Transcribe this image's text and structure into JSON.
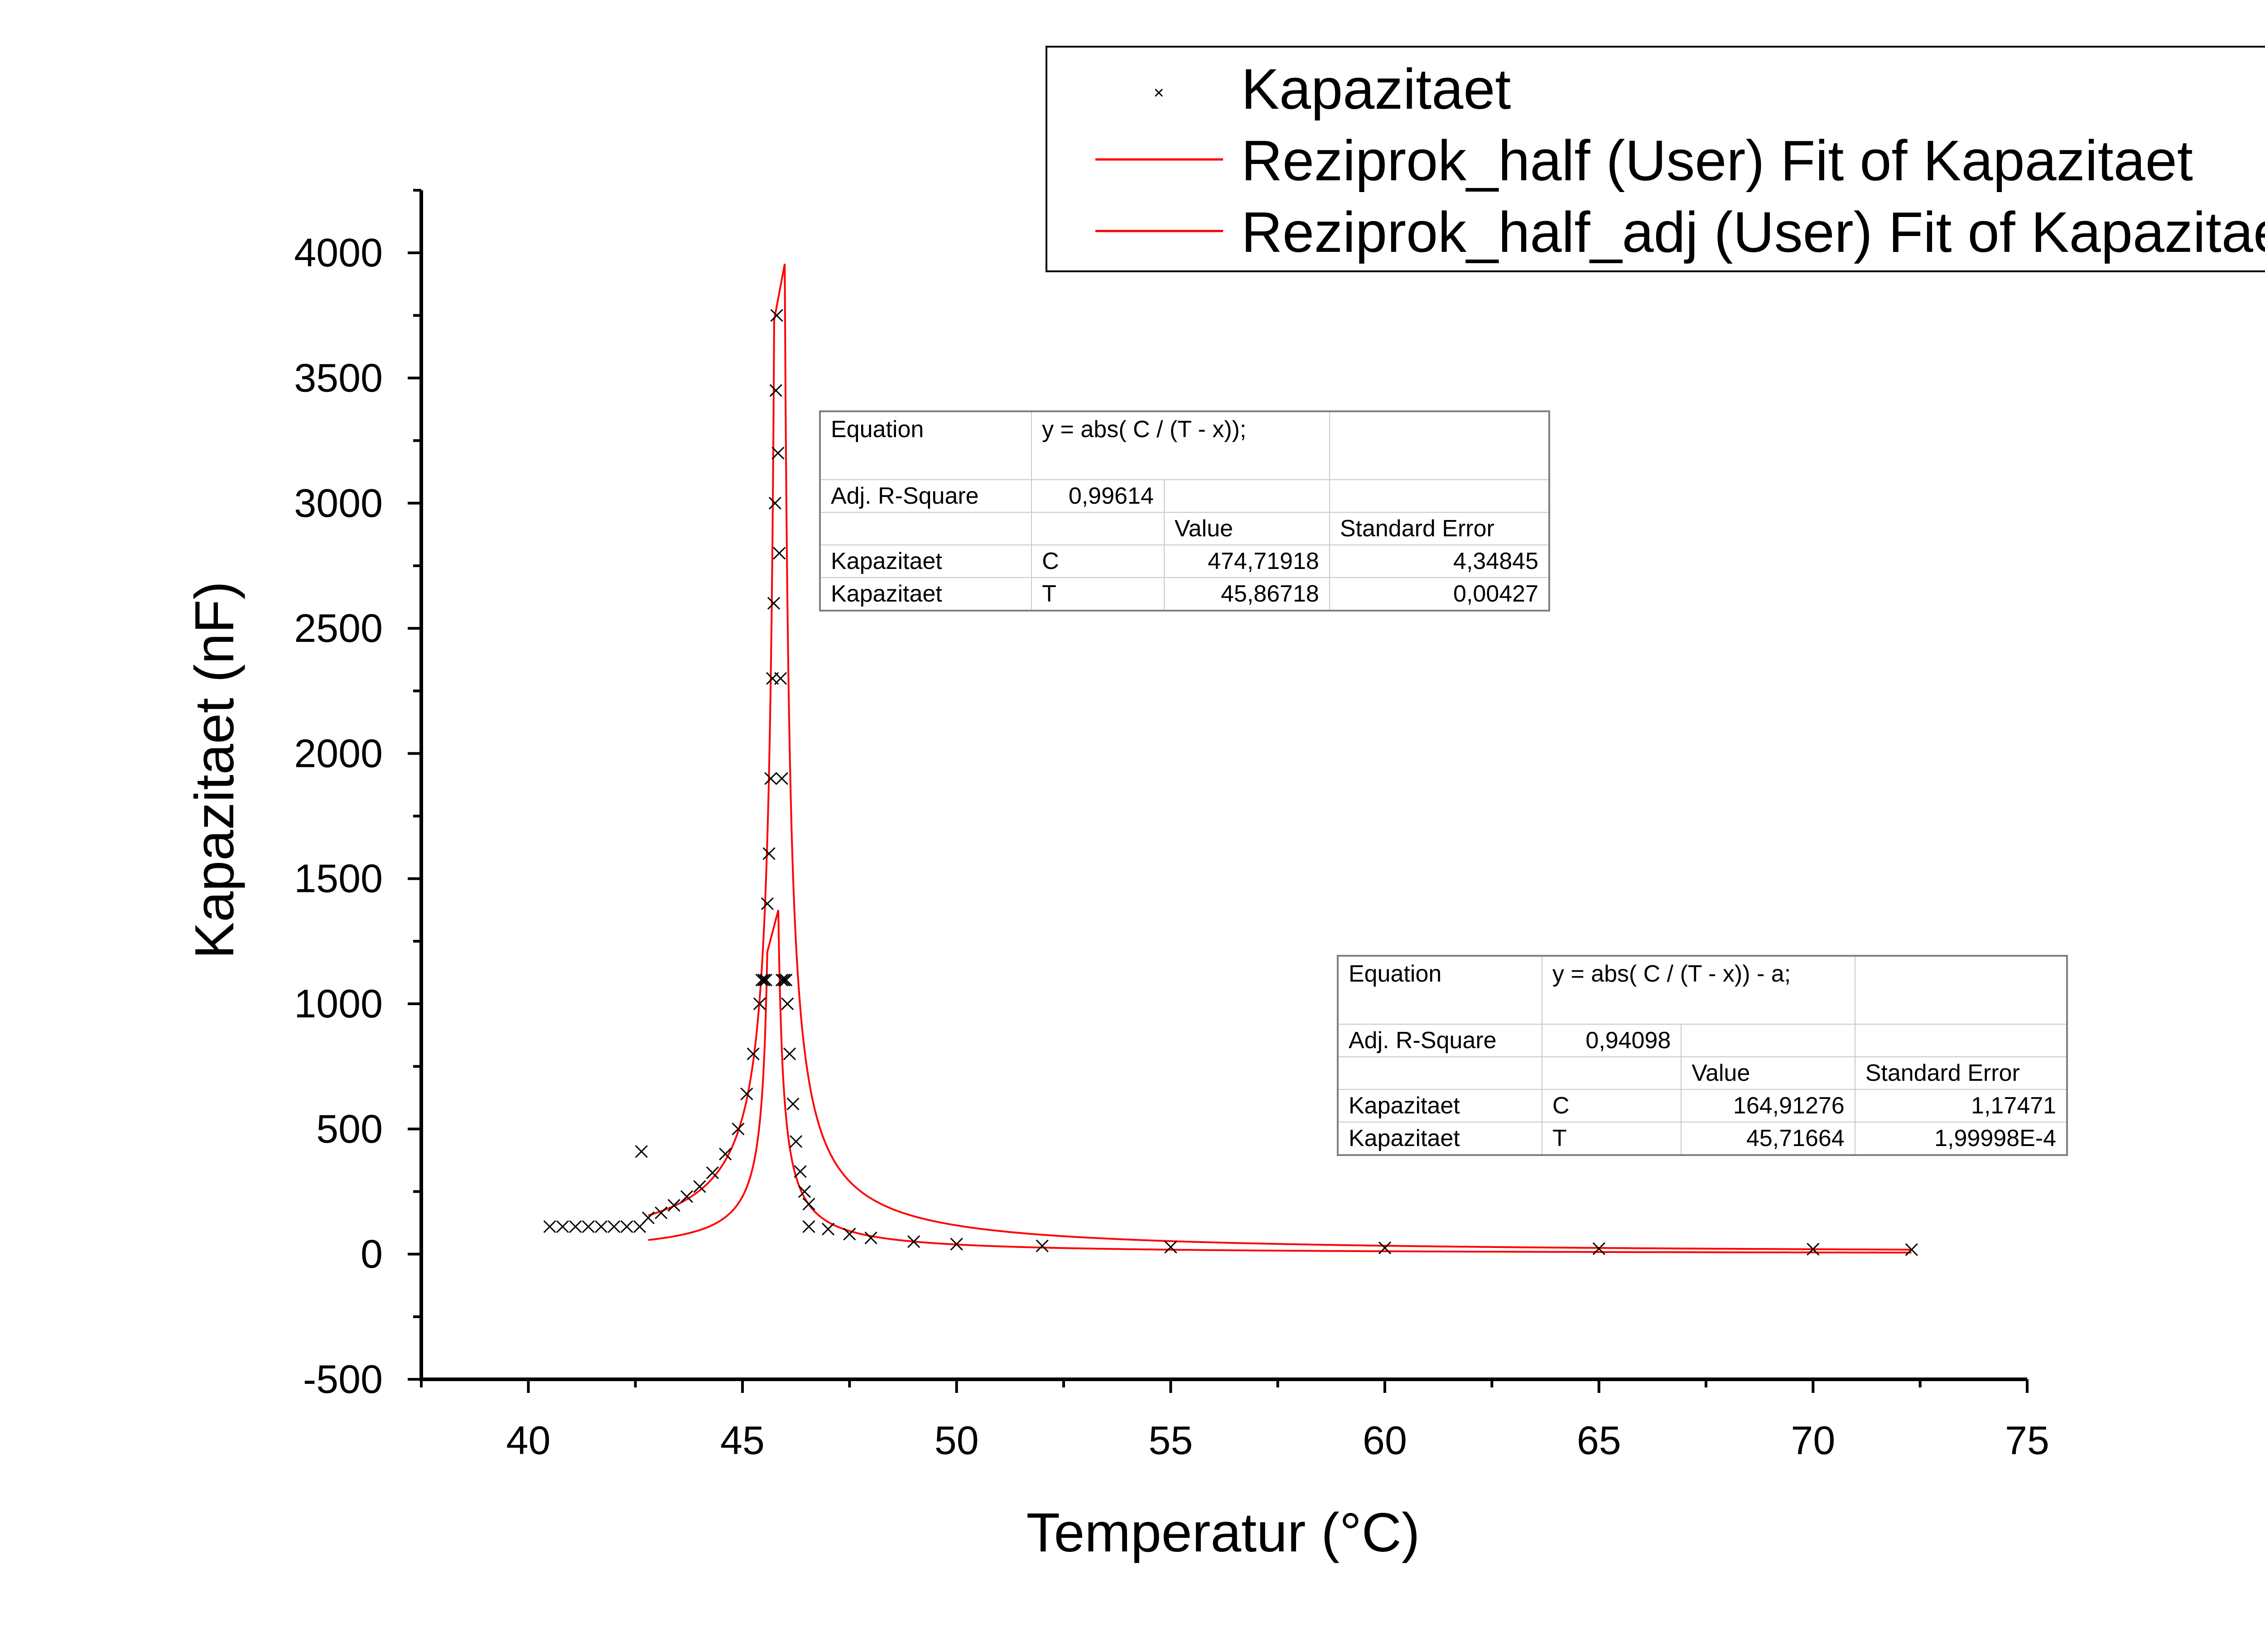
{
  "chart_data": {
    "type": "scatter",
    "xlabel": "Temperatur (°C)",
    "ylabel": "Kapazitaet (nF)",
    "xlim": [
      37.5,
      75
    ],
    "ylim": [
      -500,
      4250
    ],
    "x_ticks": [
      40,
      45,
      50,
      55,
      60,
      65,
      70,
      75
    ],
    "y_ticks": [
      -500,
      0,
      500,
      1000,
      1500,
      2000,
      2500,
      3000,
      3500,
      4000
    ],
    "legend_position": "top-right",
    "colors": {
      "data": "#000000",
      "fit": "#ff0000"
    },
    "series": [
      {
        "name": "Kapazitaet",
        "kind": "scatter",
        "marker": "x",
        "points": [
          [
            40.5,
            110
          ],
          [
            40.8,
            110
          ],
          [
            41.1,
            110
          ],
          [
            41.4,
            110
          ],
          [
            41.7,
            110
          ],
          [
            42.0,
            110
          ],
          [
            42.3,
            110
          ],
          [
            42.6,
            110
          ],
          [
            42.64,
            410
          ],
          [
            42.8,
            145
          ],
          [
            43.1,
            165
          ],
          [
            43.4,
            195
          ],
          [
            43.7,
            230
          ],
          [
            44.0,
            270
          ],
          [
            44.3,
            325
          ],
          [
            44.6,
            400
          ],
          [
            44.9,
            500
          ],
          [
            45.1,
            640
          ],
          [
            45.25,
            800
          ],
          [
            45.4,
            1000
          ],
          [
            45.45,
            1095
          ],
          [
            45.5,
            1095
          ],
          [
            45.55,
            1095
          ],
          [
            45.58,
            1400
          ],
          [
            45.62,
            1600
          ],
          [
            45.66,
            1900
          ],
          [
            45.7,
            2300
          ],
          [
            45.73,
            2600
          ],
          [
            45.76,
            3000
          ],
          [
            45.78,
            3450
          ],
          [
            45.8,
            3750
          ],
          [
            45.83,
            3200
          ],
          [
            45.86,
            2800
          ],
          [
            45.89,
            2300
          ],
          [
            45.92,
            1900
          ],
          [
            45.92,
            1095
          ],
          [
            45.97,
            1095
          ],
          [
            46.02,
            1095
          ],
          [
            46.05,
            1000
          ],
          [
            46.1,
            800
          ],
          [
            46.18,
            600
          ],
          [
            46.25,
            450
          ],
          [
            46.35,
            330
          ],
          [
            46.45,
            250
          ],
          [
            46.55,
            200
          ],
          [
            46.55,
            110
          ],
          [
            47.0,
            100
          ],
          [
            47.5,
            80
          ],
          [
            48.0,
            65
          ],
          [
            49.0,
            50
          ],
          [
            50.0,
            40
          ],
          [
            52.0,
            33
          ],
          [
            55.0,
            28
          ],
          [
            60.0,
            25
          ],
          [
            65.0,
            22
          ],
          [
            70.0,
            20
          ],
          [
            72.3,
            18
          ]
        ]
      },
      {
        "name": "Reziprok_half (User) Fit of Kapazitaet",
        "kind": "line",
        "formula": "y = abs( C / (T - x))",
        "params": {
          "C": 474.71918,
          "T": 45.86718
        }
      },
      {
        "name": "Reziprok_half_adj (User) Fit of Kapazitaet",
        "kind": "line",
        "formula": "y = abs( C / (T - x)) - a",
        "params": {
          "C": 164.91276,
          "T": 45.71664
        }
      }
    ]
  },
  "fit_table_1": {
    "equation_label": "Equation",
    "equation": "y = abs( C / (T - x));",
    "adjr_label": "Adj. R-Square",
    "adjr_value": "0,99614",
    "value_header": "Value",
    "error_header": "Standard Error",
    "rows": [
      {
        "name": "Kapazitaet",
        "param": "C",
        "value": "474,71918",
        "error": "4,34845"
      },
      {
        "name": "Kapazitaet",
        "param": "T",
        "value": "45,86718",
        "error": "0,00427"
      }
    ]
  },
  "fit_table_2": {
    "equation_label": "Equation",
    "equation": "y = abs( C / (T - x)) - a;",
    "adjr_label": "Adj. R-Square",
    "adjr_value": "0,94098",
    "value_header": "Value",
    "error_header": "Standard Error",
    "rows": [
      {
        "name": "Kapazitaet",
        "param": "C",
        "value": "164,91276",
        "error": "1,17471"
      },
      {
        "name": "Kapazitaet",
        "param": "T",
        "value": "45,71664",
        "error": "1,99998E-4"
      }
    ]
  }
}
